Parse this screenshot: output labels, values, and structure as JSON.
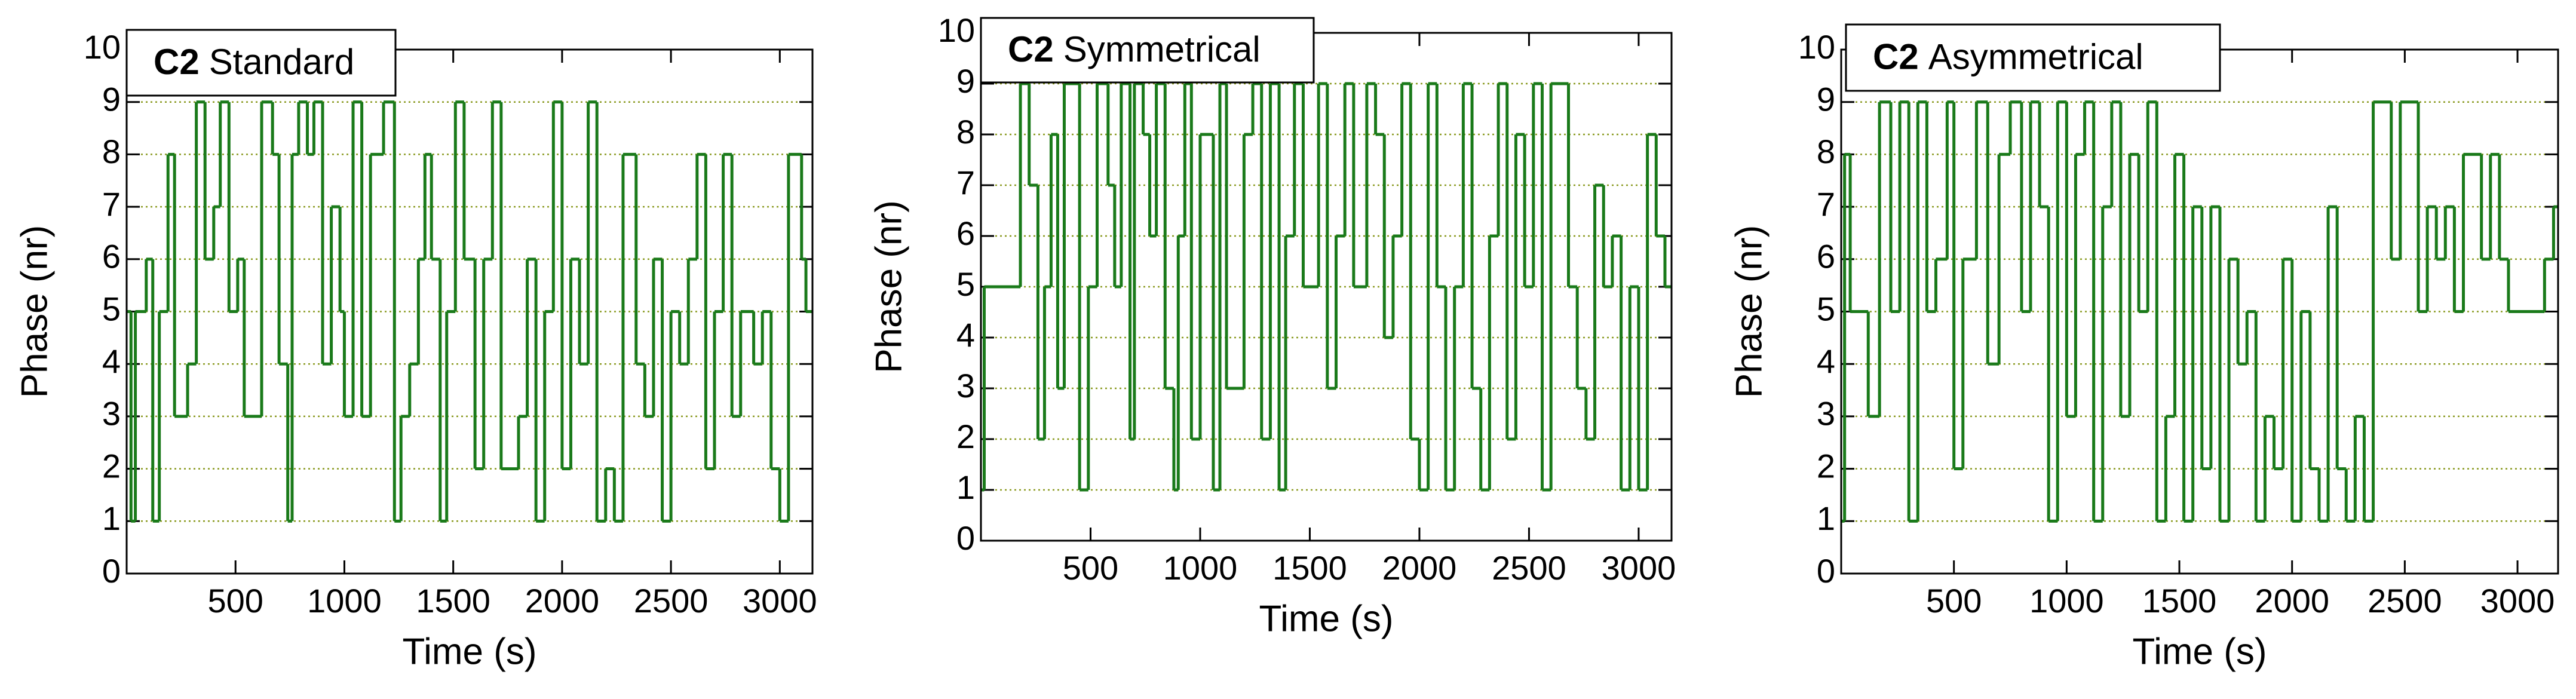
{
  "chart_data": [
    {
      "type": "line",
      "drawstyle": "steps-post",
      "title_bold": "C2",
      "title": "Standard",
      "xlabel": "Time (s)",
      "ylabel": "Phase (nr)",
      "color": "#1a7a1a",
      "grid": true,
      "xlim": [
        0,
        3150
      ],
      "ylim": [
        0,
        10
      ],
      "xticks": [
        500,
        1000,
        1500,
        2000,
        2500,
        3000
      ],
      "yticks": [
        0,
        1,
        2,
        3,
        4,
        5,
        6,
        7,
        8,
        9,
        10
      ],
      "x": [
        0,
        20,
        40,
        90,
        120,
        150,
        190,
        220,
        280,
        320,
        360,
        400,
        430,
        470,
        510,
        540,
        620,
        670,
        700,
        740,
        760,
        790,
        830,
        860,
        900,
        940,
        980,
        1000,
        1040,
        1080,
        1120,
        1180,
        1230,
        1260,
        1300,
        1340,
        1370,
        1400,
        1440,
        1470,
        1510,
        1550,
        1600,
        1640,
        1680,
        1720,
        1800,
        1840,
        1880,
        1920,
        1960,
        2000,
        2040,
        2080,
        2120,
        2160,
        2200,
        2240,
        2280,
        2340,
        2380,
        2420,
        2460,
        2500,
        2540,
        2580,
        2620,
        2660,
        2700,
        2740,
        2780,
        2820,
        2880,
        2920,
        2960,
        3000,
        3040,
        3100,
        3120
      ],
      "values": [
        5,
        1,
        5,
        6,
        1,
        5,
        8,
        3,
        4,
        9,
        6,
        7,
        9,
        5,
        6,
        3,
        9,
        8,
        4,
        1,
        8,
        9,
        8,
        9,
        4,
        7,
        5,
        3,
        9,
        3,
        8,
        9,
        1,
        3,
        4,
        6,
        8,
        6,
        1,
        5,
        9,
        6,
        2,
        6,
        9,
        2,
        3,
        6,
        1,
        5,
        9,
        2,
        6,
        4,
        9,
        1,
        2,
        1,
        8,
        4,
        3,
        6,
        1,
        5,
        4,
        6,
        8,
        2,
        5,
        8,
        3,
        5,
        4,
        5,
        2,
        1,
        8,
        6,
        5
      ]
    },
    {
      "type": "line",
      "drawstyle": "steps-post",
      "title_bold": "C2",
      "title": "Symmetrical",
      "xlabel": "Time (s)",
      "ylabel": "Phase (nr)",
      "color": "#1a7a1a",
      "grid": true,
      "xlim": [
        0,
        3150
      ],
      "ylim": [
        0,
        10
      ],
      "xticks": [
        500,
        1000,
        1500,
        2000,
        2500,
        3000
      ],
      "yticks": [
        0,
        1,
        2,
        3,
        4,
        5,
        6,
        7,
        8,
        9,
        10
      ],
      "x": [
        0,
        15,
        180,
        220,
        260,
        290,
        320,
        350,
        380,
        450,
        490,
        530,
        580,
        610,
        640,
        680,
        700,
        740,
        770,
        800,
        840,
        880,
        900,
        930,
        960,
        1000,
        1060,
        1090,
        1120,
        1200,
        1240,
        1280,
        1320,
        1360,
        1390,
        1430,
        1470,
        1540,
        1580,
        1620,
        1660,
        1700,
        1760,
        1800,
        1840,
        1880,
        1920,
        1960,
        2000,
        2040,
        2080,
        2120,
        2160,
        2200,
        2240,
        2280,
        2320,
        2360,
        2400,
        2440,
        2480,
        2520,
        2560,
        2600,
        2680,
        2720,
        2760,
        2800,
        2840,
        2880,
        2920,
        2960,
        3000,
        3040,
        3080,
        3120
      ],
      "values": [
        1,
        5,
        9,
        7,
        2,
        5,
        8,
        3,
        9,
        1,
        5,
        9,
        7,
        5,
        9,
        2,
        9,
        8,
        6,
        9,
        3,
        1,
        6,
        9,
        2,
        8,
        1,
        9,
        3,
        8,
        9,
        2,
        9,
        1,
        6,
        9,
        5,
        9,
        3,
        6,
        9,
        5,
        9,
        8,
        4,
        6,
        9,
        2,
        1,
        9,
        5,
        1,
        5,
        9,
        3,
        1,
        6,
        9,
        2,
        8,
        5,
        9,
        1,
        9,
        5,
        3,
        2,
        7,
        5,
        6,
        1,
        5,
        1,
        8,
        6,
        5
      ]
    },
    {
      "type": "line",
      "drawstyle": "steps-post",
      "title_bold": "C2",
      "title": "Asymmetrical",
      "xlabel": "Time (s)",
      "ylabel": "Phase (nr)",
      "color": "#1a7a1a",
      "grid": true,
      "xlim": [
        0,
        3180
      ],
      "ylim": [
        0,
        10
      ],
      "xticks": [
        500,
        1000,
        1500,
        2000,
        2500,
        3000
      ],
      "yticks": [
        0,
        1,
        2,
        3,
        4,
        5,
        6,
        7,
        8,
        9,
        10
      ],
      "x": [
        0,
        15,
        40,
        120,
        170,
        220,
        260,
        300,
        340,
        380,
        420,
        470,
        500,
        540,
        600,
        650,
        700,
        750,
        800,
        840,
        880,
        920,
        960,
        1000,
        1040,
        1080,
        1120,
        1160,
        1200,
        1240,
        1280,
        1320,
        1360,
        1400,
        1440,
        1480,
        1520,
        1560,
        1600,
        1640,
        1680,
        1720,
        1760,
        1800,
        1840,
        1880,
        1920,
        1960,
        2000,
        2040,
        2080,
        2120,
        2160,
        2200,
        2240,
        2280,
        2320,
        2360,
        2440,
        2480,
        2560,
        2600,
        2640,
        2680,
        2720,
        2760,
        2840,
        2880,
        2920,
        2960,
        3120,
        3160
      ],
      "values": [
        1,
        8,
        5,
        3,
        9,
        5,
        9,
        1,
        9,
        5,
        6,
        9,
        2,
        6,
        9,
        4,
        8,
        9,
        5,
        9,
        7,
        1,
        9,
        3,
        8,
        9,
        1,
        7,
        9,
        3,
        8,
        5,
        9,
        1,
        3,
        8,
        1,
        7,
        2,
        7,
        1,
        6,
        4,
        5,
        1,
        3,
        2,
        6,
        1,
        5,
        2,
        1,
        7,
        2,
        1,
        3,
        1,
        9,
        6,
        9,
        5,
        7,
        6,
        7,
        5,
        8,
        6,
        8,
        6,
        5,
        6,
        7
      ]
    }
  ]
}
